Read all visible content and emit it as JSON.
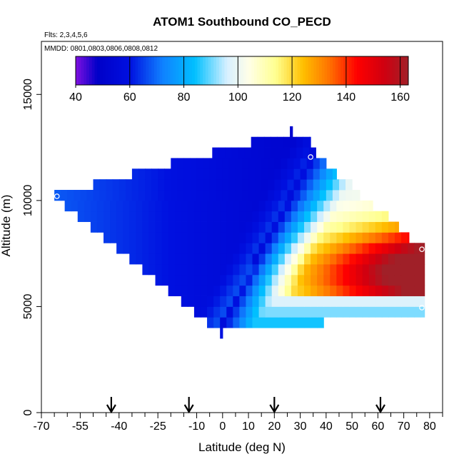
{
  "chart_data": {
    "type": "heatmap",
    "title": "ATOM1 Southbound CO_PECD",
    "notes": [
      "Flts: 2,3,4,5,6",
      "MMDD: 0801,0803,0806,0808,0812"
    ],
    "xlabel": "Latitude (deg N)",
    "ylabel": "Altitude (m)",
    "xlim": [
      -70,
      85
    ],
    "ylim": [
      0,
      17500
    ],
    "x_ticks": [
      -70,
      -55,
      -40,
      -25,
      -10,
      0,
      10,
      20,
      30,
      40,
      50,
      60,
      70,
      80
    ],
    "x_tick_labels": [
      "-70",
      "-55",
      "-40",
      "-25",
      "-10",
      "0",
      "10",
      "20",
      "30",
      "40",
      "50",
      "60",
      "70",
      "80"
    ],
    "x_minor_ticks": [
      -65,
      -60,
      -50,
      -45,
      -35,
      -30,
      -20,
      -15,
      -5,
      5,
      15,
      25,
      35,
      45,
      55,
      65,
      75,
      85
    ],
    "y_ticks": [
      0,
      5000,
      10000,
      15000
    ],
    "y_tick_labels": [
      "0",
      "5000",
      "10000",
      "15000"
    ],
    "arrow_latitudes": [
      -43,
      -13,
      20,
      61
    ],
    "colorbar": {
      "min": 40,
      "max": 163,
      "ticks": [
        40,
        60,
        80,
        100,
        120,
        140,
        160
      ],
      "tick_labels": [
        "40",
        "60",
        "80",
        "100",
        "120",
        "140",
        "160"
      ]
    },
    "bands": [
      {
        "alt": 3750,
        "lat_min": -1,
        "lat_max": 0
      },
      {
        "alt": 4250,
        "lat_min": -6,
        "lat_max": 39
      },
      {
        "alt": 4750,
        "lat_min": -11,
        "lat_max": 78
      },
      {
        "alt": 5250,
        "lat_min": -16,
        "lat_max": 78
      },
      {
        "alt": 5750,
        "lat_min": -21,
        "lat_max": 78
      },
      {
        "alt": 6250,
        "lat_min": -26,
        "lat_max": 78
      },
      {
        "alt": 6750,
        "lat_min": -31,
        "lat_max": 78
      },
      {
        "alt": 7250,
        "lat_min": -36,
        "lat_max": 78
      },
      {
        "alt": 7750,
        "lat_min": -41,
        "lat_max": 78
      },
      {
        "alt": 8250,
        "lat_min": -46,
        "lat_max": 72
      },
      {
        "alt": 8750,
        "lat_min": -51,
        "lat_max": 68
      },
      {
        "alt": 9250,
        "lat_min": -56,
        "lat_max": 64
      },
      {
        "alt": 9750,
        "lat_min": -61,
        "lat_max": 58
      },
      {
        "alt": 10250,
        "lat_min": -65,
        "lat_max": 53
      },
      {
        "alt": 10750,
        "lat_min": -50,
        "lat_max": 50
      },
      {
        "alt": 11250,
        "lat_min": -35,
        "lat_max": 44
      },
      {
        "alt": 11750,
        "lat_min": -20,
        "lat_max": 40
      },
      {
        "alt": 12250,
        "lat_min": -4,
        "lat_max": 36
      },
      {
        "alt": 12750,
        "lat_min": 11,
        "lat_max": 34
      },
      {
        "alt": 13250,
        "lat_min": 26,
        "lat_max": 27
      }
    ],
    "markers": [
      {
        "lat": -64,
        "alt": 10200
      },
      {
        "lat": 34,
        "alt": 12050
      },
      {
        "lat": 77,
        "alt": 7700
      },
      {
        "lat": 77,
        "alt": 4950
      }
    ]
  }
}
